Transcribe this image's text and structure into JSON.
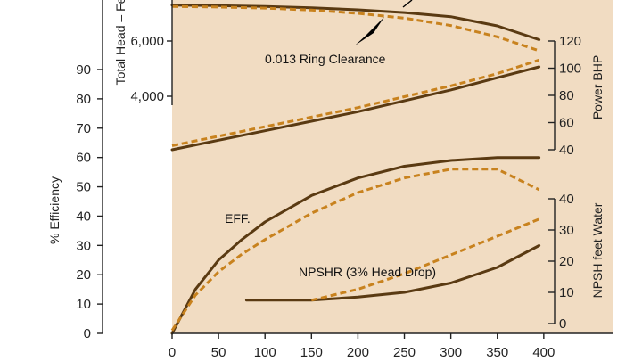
{
  "chart_data": {
    "type": "line",
    "background_color": "#f1dcc2",
    "solid_color": "#5a3a12",
    "dashed_color": "#c8821e",
    "x_axis": {
      "ticks": [
        0,
        50,
        100,
        150,
        200,
        250,
        300,
        350,
        400
      ],
      "range": [
        0,
        475
      ]
    },
    "axes": {
      "efficiency": {
        "label": "% Efficiency",
        "ticks": [
          0,
          10,
          20,
          30,
          40,
          50,
          60,
          70,
          80,
          90
        ]
      },
      "head": {
        "label": "Total Head – Fe",
        "ticks": [
          "4,000",
          "6,000"
        ]
      },
      "power": {
        "label": "Power BHP",
        "ticks": [
          40,
          60,
          80,
          100,
          120
        ]
      },
      "npsh": {
        "label": "NPSH feet Water",
        "ticks": [
          0,
          10,
          20,
          30,
          40
        ]
      }
    },
    "annotations": {
      "ring_clearance": "0.013 Ring Clearance",
      "efficiency": "EFF.",
      "npshr": "NPSHR (3% Head Drop)"
    },
    "series": [
      {
        "curve": "head",
        "style": "solid",
        "axis": "head",
        "x": [
          0,
          50,
          100,
          150,
          200,
          250,
          300,
          350,
          395
        ],
        "y": [
          7300,
          7280,
          7250,
          7200,
          7130,
          7030,
          6880,
          6550,
          6050
        ]
      },
      {
        "curve": "head",
        "style": "dashed",
        "axis": "head",
        "x": [
          0,
          50,
          100,
          150,
          200,
          250,
          300,
          350,
          395
        ],
        "y": [
          7250,
          7230,
          7190,
          7120,
          7000,
          6830,
          6560,
          6150,
          5650
        ]
      },
      {
        "curve": "power",
        "style": "solid",
        "axis": "power",
        "x": [
          0,
          50,
          100,
          150,
          200,
          250,
          300,
          350,
          395
        ],
        "y": [
          40,
          47,
          54,
          61,
          68,
          76,
          84,
          93,
          101
        ]
      },
      {
        "curve": "power",
        "style": "dashed",
        "axis": "power",
        "x": [
          0,
          50,
          100,
          150,
          200,
          250,
          300,
          350,
          395
        ],
        "y": [
          43,
          50,
          57,
          64,
          71,
          79,
          87,
          96,
          106
        ]
      },
      {
        "curve": "efficiency",
        "style": "solid",
        "axis": "efficiency",
        "x": [
          0,
          25,
          50,
          75,
          100,
          150,
          200,
          250,
          300,
          350,
          395
        ],
        "y": [
          0,
          15,
          25,
          32,
          38,
          47,
          53,
          57,
          59,
          60,
          60
        ]
      },
      {
        "curve": "efficiency",
        "style": "dashed",
        "axis": "efficiency",
        "x": [
          0,
          25,
          50,
          75,
          100,
          150,
          200,
          250,
          300,
          350,
          395
        ],
        "y": [
          1,
          13,
          21,
          27,
          32,
          41,
          48,
          53,
          56,
          56,
          49
        ]
      },
      {
        "curve": "npshr",
        "style": "solid",
        "axis": "npsh",
        "x": [
          80,
          150,
          200,
          250,
          300,
          350,
          395
        ],
        "y": [
          7.5,
          7.5,
          8.5,
          10,
          13,
          18,
          25
        ]
      },
      {
        "curve": "npshr",
        "style": "dashed",
        "axis": "npsh",
        "x": [
          150,
          200,
          250,
          300,
          350,
          395
        ],
        "y": [
          7.5,
          11,
          16,
          22,
          28,
          33.5
        ]
      }
    ]
  }
}
